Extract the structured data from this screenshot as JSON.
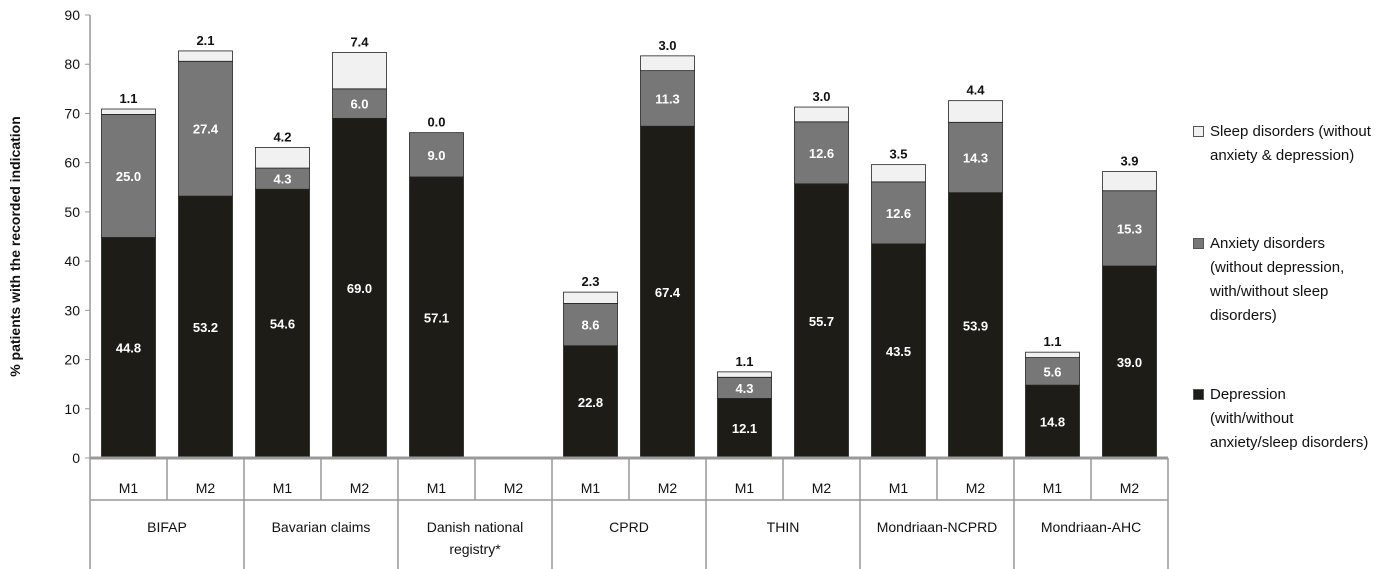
{
  "chart_data": {
    "type": "bar",
    "stacked": true,
    "ylabel": "% patients with the recorded indication",
    "ylim": [
      0,
      90
    ],
    "yticks": [
      0,
      10,
      20,
      30,
      40,
      50,
      60,
      70,
      80,
      90
    ],
    "groups": [
      {
        "name": "BIFAP",
        "name_lines": [
          "BIFAP"
        ]
      },
      {
        "name": "Bavarian claims",
        "name_lines": [
          "Bavarian claims"
        ]
      },
      {
        "name": "Danish national registry*",
        "name_lines": [
          "Danish national",
          "registry*"
        ]
      },
      {
        "name": "CPRD",
        "name_lines": [
          "CPRD"
        ]
      },
      {
        "name": "THIN",
        "name_lines": [
          "THIN"
        ]
      },
      {
        "name": "Mondriaan-NCPRD",
        "name_lines": [
          "Mondriaan-NCPRD"
        ]
      },
      {
        "name": "Mondriaan-AHC",
        "name_lines": [
          "Mondriaan-AHC"
        ]
      }
    ],
    "categories": [
      "M1",
      "M2",
      "M1",
      "M2",
      "M1",
      "M2",
      "M1",
      "M2",
      "M1",
      "M2",
      "M1",
      "M2",
      "M1",
      "M2"
    ],
    "series": [
      {
        "name": "Depression (with/without anxiety/sleep disorders)",
        "color": "#1e1c17",
        "values": [
          44.8,
          53.2,
          54.6,
          69.0,
          57.1,
          null,
          22.8,
          67.4,
          12.1,
          55.7,
          43.5,
          53.9,
          14.8,
          39.0
        ]
      },
      {
        "name": "Anxiety disorders (without depression, with/without sleep disorders)",
        "color": "#777777",
        "values": [
          25.0,
          27.4,
          4.3,
          6.0,
          9.0,
          null,
          8.6,
          11.3,
          4.3,
          12.6,
          12.6,
          14.3,
          5.6,
          15.3
        ]
      },
      {
        "name": "Sleep disorders (without anxiety & depression)",
        "color": "#f1f1f1",
        "values": [
          1.1,
          2.1,
          4.2,
          7.4,
          0.0,
          null,
          2.3,
          3.0,
          1.1,
          3.0,
          3.5,
          4.4,
          1.1,
          3.9
        ]
      }
    ],
    "legend": {
      "position": "right",
      "items": [
        {
          "lines": [
            "Sleep disorders (without",
            "anxiety & depression)"
          ],
          "color": "#f1f1f1"
        },
        {
          "lines": [
            "Anxiety disorders",
            "(without depression,",
            "with/without sleep",
            "disorders)"
          ],
          "color": "#777777"
        },
        {
          "lines": [
            "Depression",
            "(with/without",
            "anxiety/sleep disorders)"
          ],
          "color": "#1e1c17"
        }
      ]
    },
    "grid": false
  }
}
